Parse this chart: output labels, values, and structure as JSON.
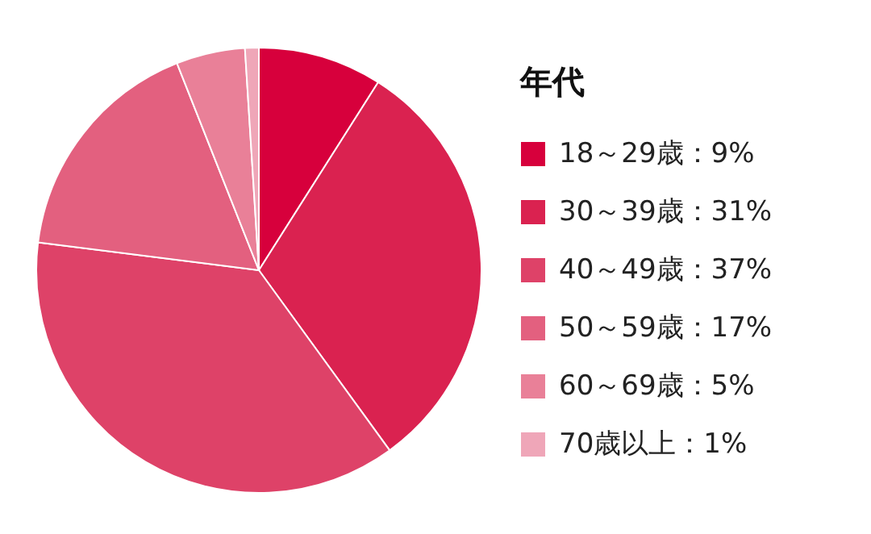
{
  "chart_data": {
    "type": "pie",
    "legend_title": "年代",
    "legend": "right",
    "categories": [
      "18～29歳",
      "30～39歳",
      "40～49歳",
      "50～59歳",
      "60～69歳",
      "70歳以上"
    ],
    "values": [
      9,
      31,
      37,
      17,
      5,
      1
    ],
    "value_labels": [
      "：9%",
      "：31%",
      "：37%",
      "：17%",
      "：5%",
      "：1%"
    ],
    "colors": [
      "#d7003c",
      "#da2250",
      "#de4268",
      "#e3607f",
      "#e98098",
      "#efa6b8"
    ]
  }
}
